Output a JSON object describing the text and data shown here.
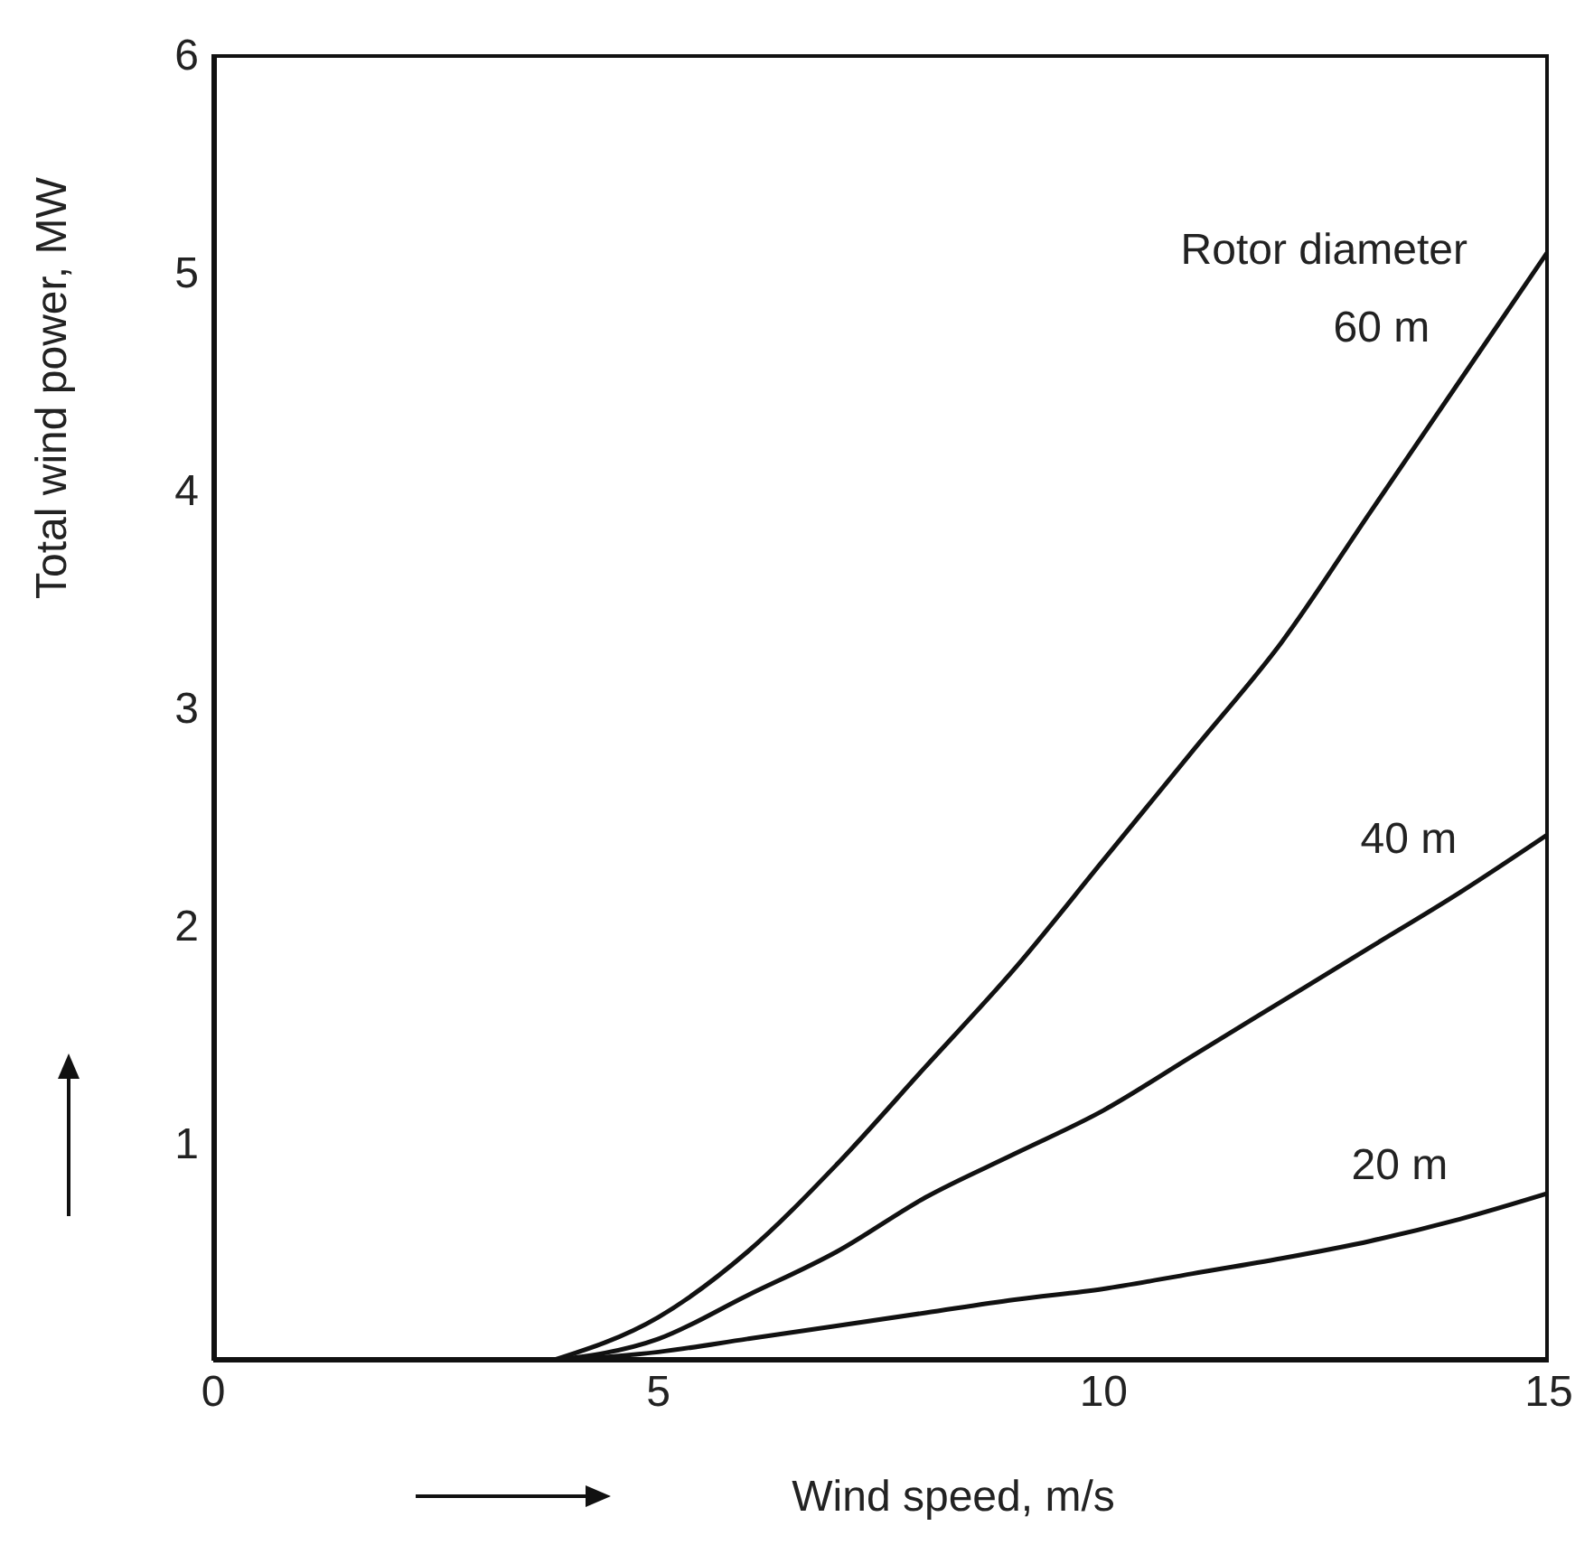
{
  "chart_data": {
    "type": "line",
    "xlabel": "Wind speed, m/s",
    "ylabel": "Total wind power, MW",
    "legend_title": "Rotor diameter",
    "xlim": [
      0,
      15
    ],
    "ylim": [
      0,
      6
    ],
    "xticks": [
      0,
      5,
      10,
      15
    ],
    "yticks": [
      1,
      2,
      3,
      4,
      5,
      6
    ],
    "grid": false,
    "legend": false,
    "marker": "none",
    "line_style": "solid",
    "x": [
      3.8,
      5,
      6,
      7,
      8,
      9,
      10,
      11,
      12,
      13,
      14,
      15
    ],
    "series": [
      {
        "name": "60 m",
        "color": "#111111",
        "values": [
          0,
          0.2,
          0.5,
          0.9,
          1.35,
          1.8,
          2.3,
          2.8,
          3.3,
          3.9,
          4.5,
          5.1
        ]
      },
      {
        "name": "40 m",
        "color": "#111111",
        "values": [
          0,
          0.1,
          0.3,
          0.5,
          0.75,
          0.95,
          1.15,
          1.4,
          1.65,
          1.9,
          2.15,
          2.42
        ]
      },
      {
        "name": "20 m",
        "color": "#111111",
        "values": [
          0,
          0.04,
          0.1,
          0.16,
          0.22,
          0.28,
          0.33,
          0.4,
          0.47,
          0.55,
          0.65,
          0.77
        ]
      }
    ]
  }
}
